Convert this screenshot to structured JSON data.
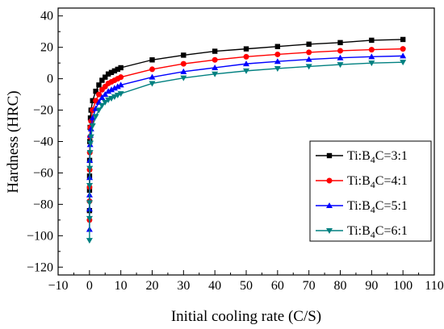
{
  "chart_data": {
    "type": "line",
    "xlabel": "Initial cooling rate (C/S)",
    "ylabel": "Hardness (HRC)",
    "xlim": [
      -10,
      110
    ],
    "ylim": [
      -125,
      45
    ],
    "xticks": [
      -10,
      0,
      10,
      20,
      30,
      40,
      50,
      60,
      70,
      80,
      90,
      100,
      110
    ],
    "yticks": [
      -120,
      -100,
      -80,
      -60,
      -40,
      -20,
      0,
      20,
      40
    ],
    "grid": false,
    "legend_position": "right",
    "x": [
      0.01,
      0.02,
      0.03,
      0.05,
      0.1,
      0.2,
      0.3,
      0.5,
      1,
      2,
      3,
      4,
      5,
      6,
      7,
      8,
      9,
      10,
      20,
      30,
      40,
      50,
      60,
      70,
      80,
      90,
      100
    ],
    "series": [
      {
        "name_prefix": "Ti:B",
        "name_sub": "4",
        "name_suffix": "C=3:1",
        "color": "#000000",
        "marker": "square",
        "values": [
          -84,
          -71,
          -62,
          -52,
          -40,
          -31,
          -25,
          -20,
          -14,
          -8,
          -4,
          -1,
          1,
          3,
          4,
          5,
          6,
          7,
          12,
          15,
          17.5,
          19,
          20.5,
          22,
          23,
          24.5,
          25
        ]
      },
      {
        "name_prefix": "Ti:B",
        "name_sub": "4",
        "name_suffix": "C=4:1",
        "color": "#ff0000",
        "marker": "circle",
        "values": [
          -90,
          -78,
          -69,
          -58,
          -47,
          -37,
          -31,
          -27,
          -20,
          -14,
          -10,
          -7,
          -5,
          -3,
          -2,
          -1,
          0,
          1,
          6,
          9.5,
          12,
          14,
          15.5,
          16.8,
          17.8,
          18.5,
          19
        ]
      },
      {
        "name_prefix": "Ti:B",
        "name_sub": "4",
        "name_suffix": "C=5:1",
        "color": "#0000ff",
        "marker": "triangle-up",
        "values": [
          -96,
          -83,
          -74,
          -63,
          -52,
          -42,
          -36,
          -32,
          -25,
          -19,
          -15,
          -12,
          -10,
          -8,
          -7,
          -6,
          -5,
          -4,
          1,
          4.5,
          7,
          9.5,
          11,
          12.3,
          13.3,
          14,
          14.5
        ]
      },
      {
        "name_prefix": "Ti:B",
        "name_sub": "4",
        "name_suffix": "C=6:1",
        "color": "#008080",
        "marker": "triangle-down",
        "values": [
          -103,
          -89,
          -79,
          -68,
          -57,
          -47,
          -41,
          -37,
          -30,
          -24,
          -20,
          -17,
          -15,
          -13.5,
          -12.5,
          -11.5,
          -10.5,
          -9.5,
          -3,
          0.5,
          3,
          5,
          6.5,
          7.8,
          9,
          10,
          10.5
        ]
      }
    ]
  }
}
